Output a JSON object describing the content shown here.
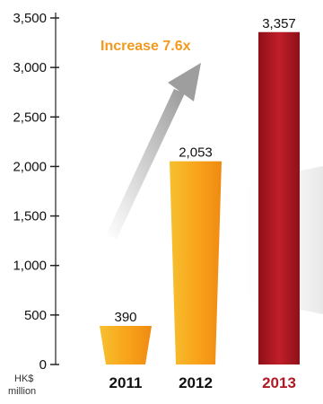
{
  "chart_data": {
    "type": "bar",
    "categories": [
      "2011",
      "2012",
      "2013"
    ],
    "values": [
      390,
      2053,
      3357
    ],
    "value_labels": [
      "390",
      "2,053",
      "3,357"
    ],
    "yticks": [
      0,
      500,
      1000,
      1500,
      2000,
      2500,
      3000,
      3500
    ],
    "ytick_labels": [
      "0",
      "500",
      "1,000",
      "1,500",
      "2,000",
      "2,500",
      "3,000",
      "3,500"
    ],
    "ylim": [
      0,
      3500
    ],
    "unit_label_line1": "HK$",
    "unit_label_line2": "million",
    "annotation": "Increase 7.6x",
    "grid": false,
    "colors": {
      "bar_2011": "#F7A823",
      "bar_2012": "#F9A51B",
      "bar_2013": "#B01A24",
      "label_2013": "#B01A24",
      "annotation": "#F39A1E",
      "arrow": "#A9A9A9",
      "axis": "#222222"
    }
  }
}
